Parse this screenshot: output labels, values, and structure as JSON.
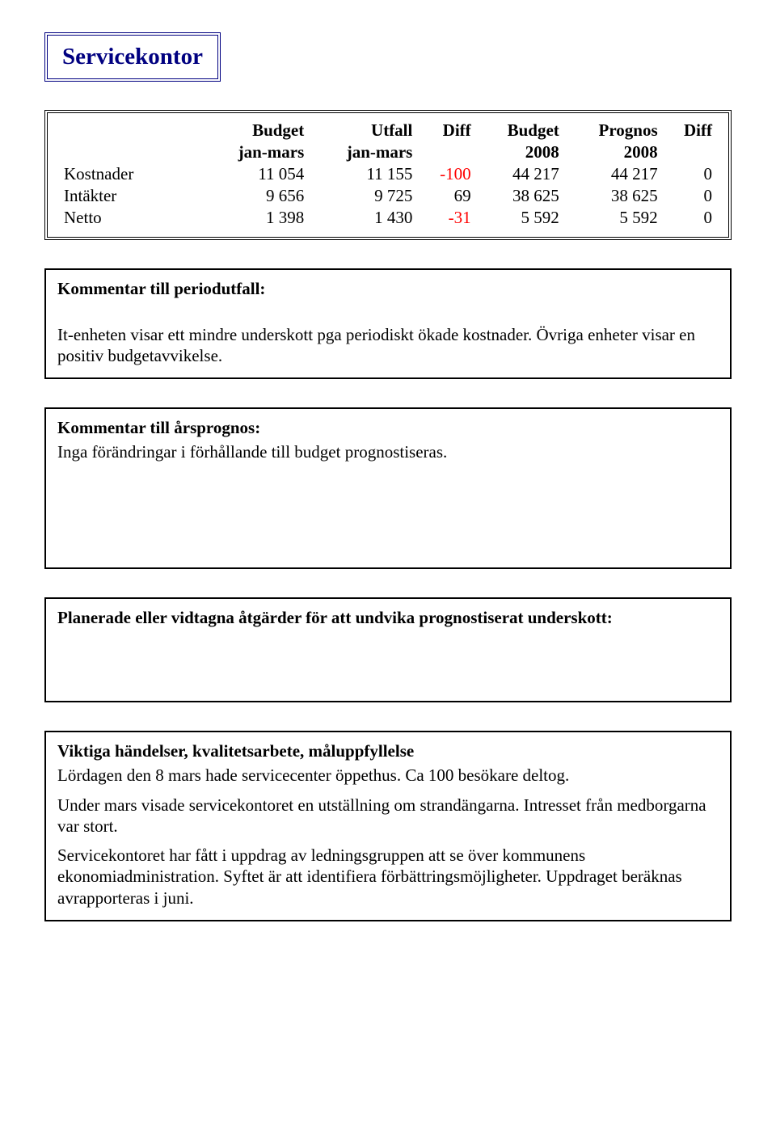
{
  "title": "Servicekontor",
  "colors": {
    "title_border": "#000080",
    "title_text": "#000080",
    "negative": "#ff0000",
    "text": "#000000",
    "background": "#ffffff",
    "box_border": "#000000"
  },
  "table": {
    "header_row1": [
      "",
      "Budget",
      "Utfall",
      "Diff",
      "Budget",
      "Prognos",
      "Diff"
    ],
    "header_row2": [
      "",
      "jan-mars",
      "jan-mars",
      "",
      "2008",
      "2008",
      ""
    ],
    "rows": [
      {
        "label": "Kostnader",
        "cells": [
          "11 054",
          "11 155",
          "-100",
          "44 217",
          "44 217",
          "0"
        ],
        "neg_idx": [
          2
        ]
      },
      {
        "label": "Intäkter",
        "cells": [
          "9 656",
          "9 725",
          "69",
          "38 625",
          "38 625",
          "0"
        ],
        "neg_idx": []
      },
      {
        "label": "Netto",
        "cells": [
          "1 398",
          "1 430",
          "-31",
          "5 592",
          "5 592",
          "0"
        ],
        "neg_idx": [
          2
        ]
      }
    ],
    "font_size": 21
  },
  "sections": {
    "periodutfall": {
      "heading": "Kommentar till periodutfall:",
      "body": [
        "It-enheten visar ett mindre underskott pga periodiskt ökade kostnader. Övriga enheter visar en positiv budgetavvikelse."
      ]
    },
    "arsprognos": {
      "heading": "Kommentar till årsprognos:",
      "body": [
        "Inga förändringar i förhållande till budget prognostiseras."
      ]
    },
    "atgarder": {
      "heading": "Planerade eller vidtagna åtgärder för att undvika prognostiserat underskott:",
      "body": []
    },
    "handelser": {
      "heading": "Viktiga händelser, kvalitetsarbete, måluppfyllelse",
      "body": [
        "Lördagen den 8 mars hade servicecenter öppethus. Ca 100 besökare deltog.",
        "Under mars visade servicekontoret en utställning om strandängarna. Intresset från medborgarna var stort.",
        "Servicekontoret har fått i uppdrag av ledningsgruppen att se över kommunens ekonomiadministration. Syftet är att identifiera förbättringsmöjligheter. Uppdraget beräknas avrapporteras i juni."
      ]
    }
  }
}
